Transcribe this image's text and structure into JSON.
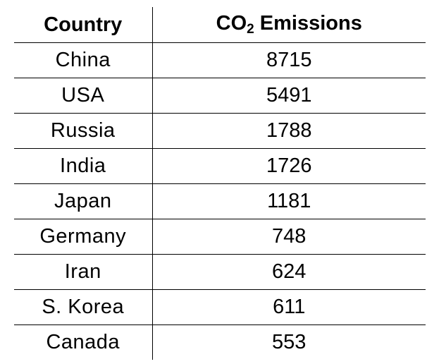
{
  "chart_data": {
    "type": "table",
    "columns": {
      "country": "Country",
      "emissions_prefix": "CO",
      "emissions_subscript": "2",
      "emissions_suffix": " Emissions"
    },
    "rows": [
      {
        "country": "China",
        "value": "8715"
      },
      {
        "country": "USA",
        "value": "5491"
      },
      {
        "country": "Russia",
        "value": "1788"
      },
      {
        "country": "India",
        "value": "1726"
      },
      {
        "country": "Japan",
        "value": "1181"
      },
      {
        "country": "Germany",
        "value": "748"
      },
      {
        "country": "Iran",
        "value": "624"
      },
      {
        "country": "S. Korea",
        "value": "611"
      },
      {
        "country": "Canada",
        "value": "553"
      }
    ]
  }
}
